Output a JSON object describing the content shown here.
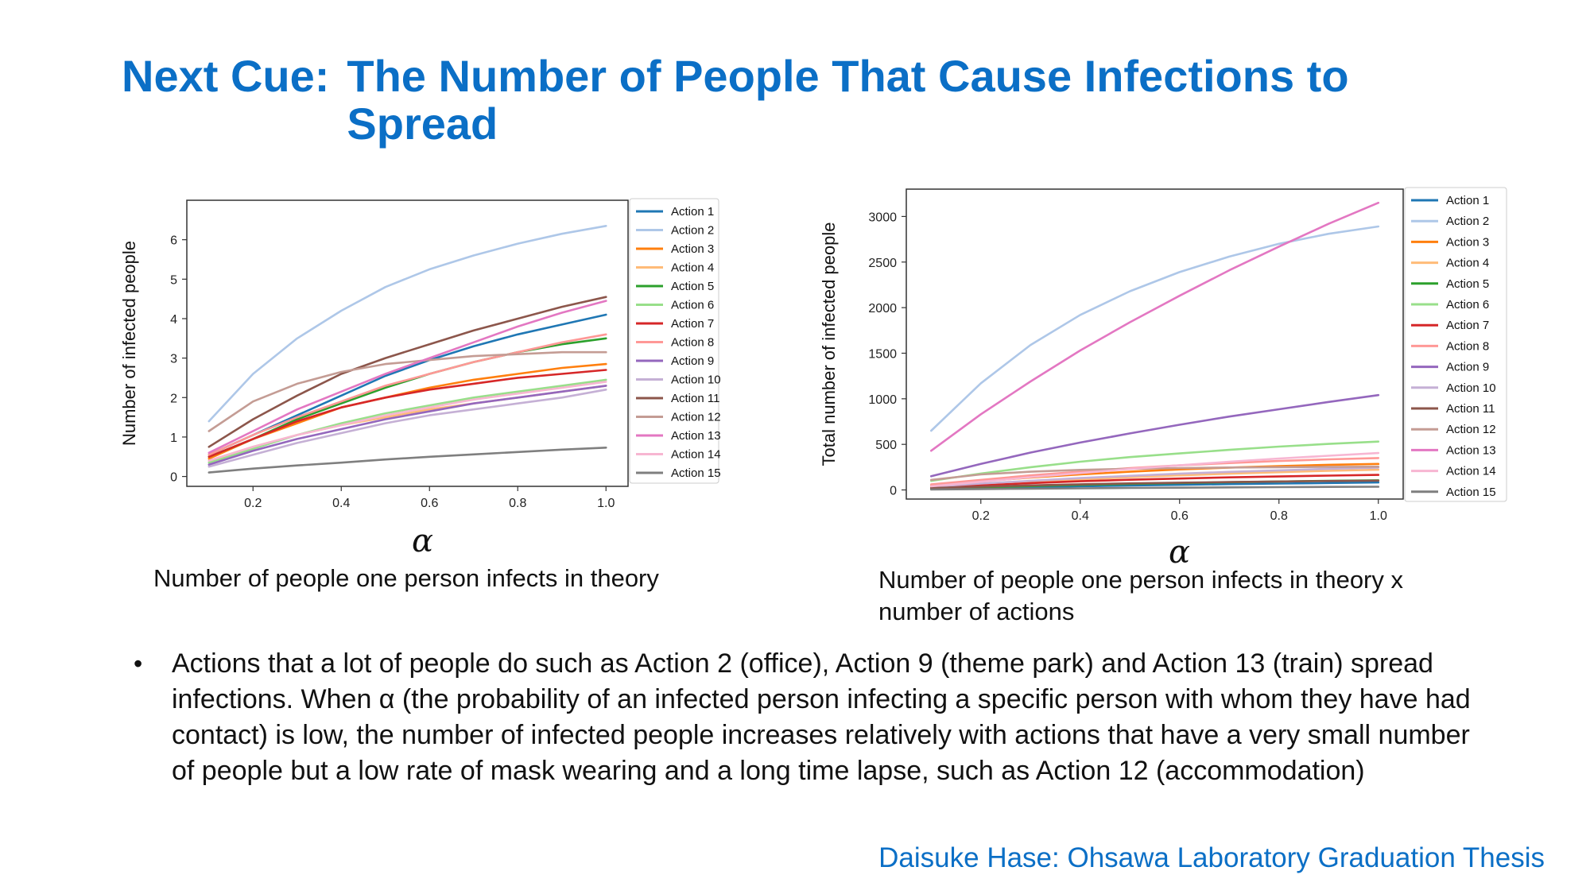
{
  "slide": {
    "title_prefix": "Next Cue:",
    "title_main": "The Number of People That Cause Infections to Spread",
    "left_xlabel": "α",
    "right_xlabel": "α",
    "left_caption": "Number of people one person infects in theory",
    "right_caption": "Number of people one person infects in theory x number of actions",
    "bullet": "Actions that a lot of people do such as Action 2 (office), Action 9 (theme park) and Action 13 (train) spread infections. When α (the probability of an infected person infecting a specific person with whom they have had contact) is low, the number of infected people increases relatively with actions that have a very small number of people but a low rate of mask wearing and a long time lapse, such as Action 12 (accommodation)",
    "footer": "Daisuke Hase: Ohsawa Laboratory Graduation Thesis"
  },
  "chart_data": [
    {
      "type": "line",
      "title": "",
      "xlabel": "α",
      "ylabel": "Number of infected people",
      "xlim": [
        0.05,
        1.05
      ],
      "ylim": [
        -0.25,
        7.0
      ],
      "xticks": [
        "0.2",
        "0.4",
        "0.6",
        "0.8",
        "1.0"
      ],
      "yticks": [
        "0",
        "1",
        "2",
        "3",
        "4",
        "5",
        "6"
      ],
      "grid": false,
      "legend": "right-outside",
      "x": [
        0.1,
        0.2,
        0.3,
        0.4,
        0.5,
        0.6,
        0.7,
        0.8,
        0.9,
        1.0
      ],
      "series": [
        {
          "name": "Action 1",
          "color": "#1f77b4",
          "values": [
            0.55,
            1.05,
            1.55,
            2.05,
            2.55,
            2.95,
            3.3,
            3.6,
            3.85,
            4.1
          ]
        },
        {
          "name": "Action 2",
          "color": "#aec7e8",
          "values": [
            1.4,
            2.6,
            3.5,
            4.2,
            4.8,
            5.25,
            5.6,
            5.9,
            6.15,
            6.35
          ]
        },
        {
          "name": "Action 3",
          "color": "#ff7f0e",
          "values": [
            0.45,
            0.95,
            1.35,
            1.75,
            2.0,
            2.25,
            2.45,
            2.6,
            2.75,
            2.85
          ]
        },
        {
          "name": "Action 4",
          "color": "#ffbb78",
          "values": [
            0.4,
            0.75,
            1.05,
            1.3,
            1.5,
            1.7,
            1.85,
            2.0,
            2.15,
            2.3
          ]
        },
        {
          "name": "Action 5",
          "color": "#2ca02c",
          "values": [
            0.5,
            0.95,
            1.45,
            1.85,
            2.25,
            2.6,
            2.9,
            3.15,
            3.35,
            3.5
          ]
        },
        {
          "name": "Action 6",
          "color": "#98df8a",
          "values": [
            0.35,
            0.7,
            1.05,
            1.35,
            1.6,
            1.8,
            2.0,
            2.15,
            2.3,
            2.45
          ]
        },
        {
          "name": "Action 7",
          "color": "#d62728",
          "values": [
            0.5,
            0.95,
            1.4,
            1.75,
            2.0,
            2.2,
            2.35,
            2.5,
            2.6,
            2.7
          ]
        },
        {
          "name": "Action 8",
          "color": "#ff9896",
          "values": [
            0.55,
            1.05,
            1.5,
            1.9,
            2.3,
            2.6,
            2.9,
            3.15,
            3.4,
            3.6
          ]
        },
        {
          "name": "Action 9",
          "color": "#9467bd",
          "values": [
            0.3,
            0.65,
            0.95,
            1.2,
            1.45,
            1.65,
            1.85,
            2.0,
            2.15,
            2.3
          ]
        },
        {
          "name": "Action 10",
          "color": "#c5b0d5",
          "values": [
            0.25,
            0.55,
            0.85,
            1.1,
            1.35,
            1.55,
            1.7,
            1.85,
            2.0,
            2.2
          ]
        },
        {
          "name": "Action 11",
          "color": "#8c564b",
          "values": [
            0.75,
            1.45,
            2.05,
            2.6,
            3.0,
            3.35,
            3.7,
            4.0,
            4.3,
            4.55
          ]
        },
        {
          "name": "Action 12",
          "color": "#c49c94",
          "values": [
            1.15,
            1.9,
            2.35,
            2.65,
            2.85,
            2.95,
            3.05,
            3.1,
            3.15,
            3.15
          ]
        },
        {
          "name": "Action 13",
          "color": "#e377c2",
          "values": [
            0.6,
            1.15,
            1.7,
            2.15,
            2.6,
            3.0,
            3.4,
            3.8,
            4.15,
            4.45
          ]
        },
        {
          "name": "Action 14",
          "color": "#f7b6d2",
          "values": [
            0.4,
            0.75,
            1.05,
            1.3,
            1.55,
            1.75,
            1.95,
            2.1,
            2.25,
            2.4
          ]
        },
        {
          "name": "Action 15",
          "color": "#7f7f7f",
          "values": [
            0.1,
            0.2,
            0.28,
            0.35,
            0.43,
            0.5,
            0.56,
            0.62,
            0.68,
            0.73
          ]
        }
      ]
    },
    {
      "type": "line",
      "title": "",
      "xlabel": "α",
      "ylabel": "Total number of infected people",
      "xlim": [
        0.05,
        1.05
      ],
      "ylim": [
        -100,
        3300
      ],
      "xticks": [
        "0.2",
        "0.4",
        "0.6",
        "0.8",
        "1.0"
      ],
      "yticks": [
        "0",
        "500",
        "1000",
        "1500",
        "2000",
        "2500",
        "3000"
      ],
      "grid": false,
      "legend": "right-outside",
      "x": [
        0.1,
        0.2,
        0.3,
        0.4,
        0.5,
        0.6,
        0.7,
        0.8,
        0.9,
        1.0
      ],
      "series": [
        {
          "name": "Action 1",
          "color": "#1f77b4",
          "values": [
            10,
            20,
            30,
            40,
            48,
            56,
            64,
            70,
            76,
            82
          ]
        },
        {
          "name": "Action 2",
          "color": "#aec7e8",
          "values": [
            650,
            1170,
            1590,
            1920,
            2180,
            2390,
            2560,
            2700,
            2810,
            2890
          ]
        },
        {
          "name": "Action 3",
          "color": "#ff7f0e",
          "values": [
            45,
            95,
            135,
            170,
            200,
            225,
            245,
            262,
            276,
            285
          ]
        },
        {
          "name": "Action 4",
          "color": "#ffbb78",
          "values": [
            30,
            60,
            90,
            115,
            140,
            160,
            178,
            195,
            210,
            222
          ]
        },
        {
          "name": "Action 5",
          "color": "#2ca02c",
          "values": [
            15,
            28,
            42,
            55,
            66,
            76,
            85,
            93,
            100,
            106
          ]
        },
        {
          "name": "Action 6",
          "color": "#98df8a",
          "values": [
            100,
            180,
            250,
            310,
            360,
            400,
            440,
            475,
            505,
            530
          ]
        },
        {
          "name": "Action 7",
          "color": "#d62728",
          "values": [
            25,
            50,
            75,
            95,
            112,
            125,
            138,
            148,
            157,
            165
          ]
        },
        {
          "name": "Action 8",
          "color": "#ff9896",
          "values": [
            60,
            110,
            160,
            200,
            240,
            270,
            295,
            318,
            336,
            350
          ]
        },
        {
          "name": "Action 9",
          "color": "#9467bd",
          "values": [
            150,
            285,
            410,
            520,
            620,
            715,
            805,
            885,
            965,
            1040
          ]
        },
        {
          "name": "Action 10",
          "color": "#c5b0d5",
          "values": [
            35,
            70,
            100,
            130,
            155,
            178,
            198,
            215,
            232,
            245
          ]
        },
        {
          "name": "Action 11",
          "color": "#8c564b",
          "values": [
            20,
            36,
            50,
            62,
            72,
            80,
            87,
            93,
            98,
            102
          ]
        },
        {
          "name": "Action 12",
          "color": "#c49c94",
          "values": [
            110,
            170,
            200,
            220,
            232,
            240,
            246,
            250,
            253,
            255
          ]
        },
        {
          "name": "Action 13",
          "color": "#e377c2",
          "values": [
            430,
            830,
            1190,
            1530,
            1840,
            2130,
            2410,
            2670,
            2920,
            3150
          ]
        },
        {
          "name": "Action 14",
          "color": "#f7b6d2",
          "values": [
            40,
            90,
            140,
            185,
            230,
            270,
            310,
            345,
            375,
            405
          ]
        },
        {
          "name": "Action 15",
          "color": "#7f7f7f",
          "values": [
            5,
            10,
            14,
            18,
            22,
            25,
            28,
            31,
            33,
            35
          ]
        }
      ]
    }
  ]
}
